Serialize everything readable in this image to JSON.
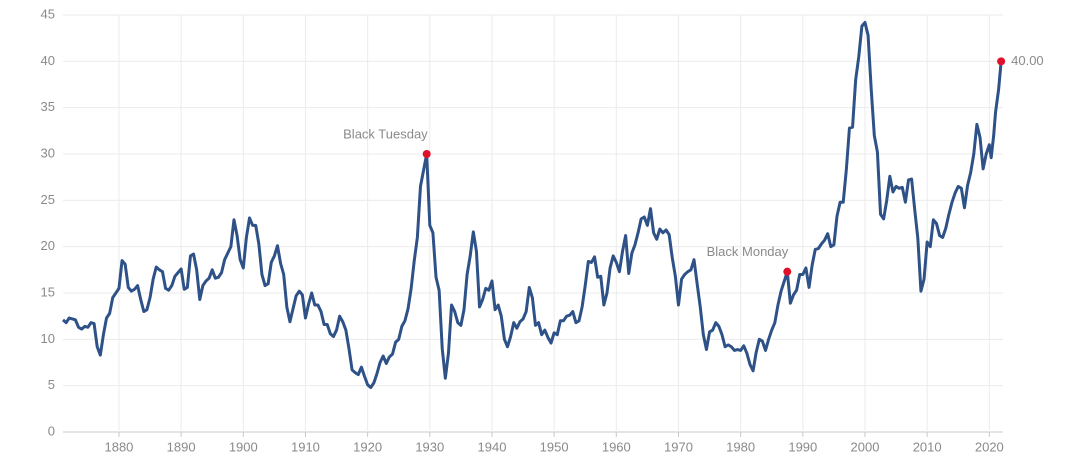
{
  "chart_data": {
    "type": "line",
    "color": "#2e5288",
    "marker_color": "#e0102b",
    "grid": true,
    "xlim": [
      1871,
      2022.2
    ],
    "ylim": [
      0,
      45
    ],
    "xticks": [
      1880,
      1890,
      1900,
      1910,
      1920,
      1930,
      1940,
      1950,
      1960,
      1970,
      1980,
      1990,
      2000,
      2010,
      2020
    ],
    "yticks": [
      0,
      5,
      10,
      15,
      20,
      25,
      30,
      35,
      40,
      45
    ],
    "x": [
      1871,
      1871.5,
      1872,
      1873,
      1873.5,
      1874,
      1874.5,
      1875,
      1875.5,
      1876,
      1876.5,
      1877,
      1877.5,
      1878,
      1878.5,
      1879,
      1880,
      1880.5,
      1881,
      1881.5,
      1882,
      1882.5,
      1883,
      1883.5,
      1884,
      1884.5,
      1885,
      1885.5,
      1886,
      1886.5,
      1887,
      1887.5,
      1888,
      1888.5,
      1889,
      1889.5,
      1890,
      1890.5,
      1891,
      1891.5,
      1892,
      1892.5,
      1893,
      1893.5,
      1894,
      1894.5,
      1895,
      1895.5,
      1896,
      1896.5,
      1897,
      1897.5,
      1898,
      1898.5,
      1899,
      1899.5,
      1900,
      1900.5,
      1901,
      1901.5,
      1902,
      1902.5,
      1903,
      1903.5,
      1904,
      1904.5,
      1905,
      1905.5,
      1906,
      1906.5,
      1907,
      1907.5,
      1908,
      1908.5,
      1909,
      1909.5,
      1910,
      1910.5,
      1911,
      1911.5,
      1912,
      1912.5,
      1913,
      1913.5,
      1914,
      1914.5,
      1915,
      1915.5,
      1916,
      1916.5,
      1917,
      1917.5,
      1918,
      1918.5,
      1919,
      1919.5,
      1920,
      1920.5,
      1921,
      1921.5,
      1922,
      1922.5,
      1923,
      1923.5,
      1924,
      1924.5,
      1925,
      1925.5,
      1926,
      1926.5,
      1927,
      1927.5,
      1928,
      1928.5,
      1929.5,
      1930,
      1930.5,
      1931,
      1931.5,
      1932,
      1932.5,
      1933,
      1933.5,
      1934,
      1934.5,
      1935,
      1935.5,
      1936,
      1936.5,
      1937,
      1937.5,
      1938,
      1938.5,
      1939,
      1939.5,
      1940,
      1940.5,
      1941,
      1941.5,
      1942,
      1942.5,
      1943,
      1943.5,
      1944,
      1944.5,
      1945,
      1945.5,
      1946,
      1946.5,
      1947,
      1947.5,
      1948,
      1948.5,
      1949,
      1949.5,
      1950,
      1950.5,
      1951,
      1951.5,
      1952,
      1952.5,
      1953,
      1953.5,
      1954,
      1954.5,
      1955,
      1955.5,
      1956,
      1956.5,
      1957,
      1957.5,
      1958,
      1958.5,
      1959,
      1959.5,
      1960,
      1960.5,
      1961,
      1961.5,
      1962,
      1962.5,
      1963,
      1963.5,
      1964,
      1964.5,
      1965,
      1965.5,
      1966,
      1966.5,
      1967,
      1967.5,
      1968,
      1968.5,
      1969,
      1969.5,
      1970,
      1970.5,
      1971,
      1971.5,
      1972,
      1972.5,
      1973,
      1973.5,
      1974,
      1974.5,
      1975,
      1975.5,
      1976,
      1976.5,
      1977,
      1977.5,
      1978,
      1978.5,
      1979,
      1979.5,
      1980,
      1980.5,
      1981,
      1981.5,
      1982,
      1982.5,
      1983,
      1983.5,
      1984,
      1984.5,
      1985,
      1985.5,
      1986,
      1986.5,
      1987.5,
      1988,
      1988.5,
      1989,
      1989.5,
      1990,
      1990.5,
      1991,
      1991.5,
      1992,
      1992.5,
      1993,
      1993.5,
      1994,
      1994.5,
      1995,
      1995.5,
      1996,
      1996.5,
      1997,
      1997.5,
      1998,
      1998.5,
      1999,
      1999.5,
      2000,
      2000.5,
      2001,
      2001.5,
      2002,
      2002.5,
      2003,
      2003.5,
      2004,
      2004.5,
      2005,
      2005.5,
      2006,
      2006.5,
      2007,
      2007.5,
      2008,
      2008.5,
      2009,
      2009.5,
      2010,
      2010.5,
      2011,
      2011.5,
      2012,
      2012.5,
      2013,
      2013.5,
      2014,
      2014.5,
      2015,
      2015.5,
      2016,
      2016.5,
      2017,
      2017.5,
      2018,
      2018.5,
      2019,
      2019.5,
      2020,
      2020.3,
      2020.7,
      2021,
      2021.5,
      2021.9
    ],
    "values": [
      12.1,
      11.8,
      12.3,
      12.1,
      11.3,
      11.1,
      11.4,
      11.3,
      11.8,
      11.7,
      9.2,
      8.3,
      10.5,
      12.3,
      12.8,
      14.5,
      15.5,
      18.5,
      18.1,
      15.6,
      15.2,
      15.4,
      15.8,
      14.3,
      13.0,
      13.2,
      14.5,
      16.5,
      17.8,
      17.5,
      17.3,
      15.5,
      15.3,
      15.8,
      16.8,
      17.2,
      17.6,
      15.4,
      15.6,
      19.0,
      19.2,
      17.5,
      14.3,
      15.8,
      16.3,
      16.6,
      17.5,
      16.6,
      16.7,
      17.2,
      18.6,
      19.3,
      20.0,
      22.9,
      21.2,
      18.6,
      17.7,
      21.0,
      23.1,
      22.3,
      22.3,
      20.3,
      17.0,
      15.8,
      16.0,
      18.3,
      19.0,
      20.1,
      18.2,
      17.0,
      13.5,
      11.9,
      13.3,
      14.7,
      15.2,
      14.8,
      12.3,
      13.8,
      15.0,
      13.7,
      13.7,
      13.0,
      11.6,
      11.6,
      10.6,
      10.3,
      11.0,
      12.5,
      11.9,
      11.0,
      9.0,
      6.7,
      6.4,
      6.2,
      7.0,
      6.0,
      5.1,
      4.8,
      5.3,
      6.3,
      7.5,
      8.2,
      7.4,
      8.1,
      8.4,
      9.7,
      10.0,
      11.4,
      12.0,
      13.3,
      15.5,
      18.5,
      21.0,
      26.5,
      30.0,
      22.3,
      21.5,
      16.7,
      15.3,
      9.0,
      5.8,
      8.5,
      13.7,
      13.0,
      11.8,
      11.5,
      13.2,
      17.0,
      19.0,
      21.6,
      19.5,
      13.5,
      14.3,
      15.5,
      15.3,
      16.3,
      13.2,
      13.7,
      12.5,
      10.0,
      9.2,
      10.3,
      11.8,
      11.2,
      11.9,
      12.2,
      13.0,
      15.6,
      14.5,
      11.5,
      11.8,
      10.5,
      11.0,
      10.2,
      9.6,
      10.7,
      10.5,
      12.0,
      12.0,
      12.5,
      12.6,
      13.0,
      11.8,
      12.0,
      13.5,
      15.8,
      18.4,
      18.3,
      18.9,
      16.7,
      16.8,
      13.7,
      15.0,
      17.7,
      19.0,
      18.3,
      17.3,
      19.5,
      21.2,
      17.1,
      19.3,
      20.2,
      21.5,
      23.0,
      23.2,
      22.3,
      24.1,
      21.5,
      20.8,
      21.9,
      21.5,
      21.8,
      21.3,
      18.8,
      16.8,
      13.7,
      16.5,
      17.0,
      17.3,
      17.5,
      18.6,
      16.0,
      13.5,
      10.5,
      8.9,
      10.8,
      11.0,
      11.8,
      11.4,
      10.5,
      9.2,
      9.4,
      9.2,
      8.8,
      8.9,
      8.8,
      9.3,
      8.5,
      7.3,
      6.6,
      8.6,
      10.0,
      9.8,
      8.8,
      10.0,
      11.0,
      11.8,
      13.7,
      15.2,
      17.3,
      13.9,
      14.8,
      15.3,
      17.0,
      17.0,
      17.7,
      15.6,
      18.0,
      19.7,
      19.8,
      20.3,
      20.7,
      21.4,
      20.0,
      20.2,
      23.3,
      24.8,
      24.8,
      28.3,
      32.8,
      32.9,
      38.0,
      40.5,
      43.8,
      44.2,
      42.8,
      37.0,
      32.0,
      30.2,
      23.5,
      23.0,
      25.0,
      27.6,
      25.9,
      26.5,
      26.3,
      26.4,
      24.8,
      27.2,
      27.3,
      24.0,
      20.9,
      15.2,
      16.5,
      20.5,
      20.0,
      22.9,
      22.5,
      21.2,
      21.0,
      22.0,
      23.5,
      24.8,
      25.8,
      26.5,
      26.3,
      24.2,
      26.6,
      28.0,
      30.0,
      33.2,
      31.8,
      28.4,
      30.0,
      31.0,
      29.6,
      32.0,
      34.5,
      37.0,
      40.0
    ],
    "annotations": [
      {
        "label": "Black Tuesday",
        "x": 1929.5,
        "y": 30.0
      },
      {
        "label": "Black Monday",
        "x": 1987.5,
        "y": 17.3
      },
      {
        "label": "40.00",
        "x": 2021.9,
        "y": 40
      }
    ]
  }
}
